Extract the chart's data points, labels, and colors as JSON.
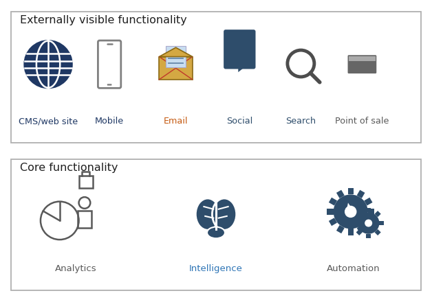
{
  "top_title": "Externally visible functionality",
  "bottom_title": "Core functionality",
  "top_labels": [
    "CMS/web site",
    "Mobile",
    "Email",
    "Social",
    "Search",
    "Point of sale"
  ],
  "top_label_colors": [
    "#1f3864",
    "#1f3864",
    "#c55a11",
    "#2e4d6b",
    "#2e4d6b",
    "#595959"
  ],
  "bottom_labels": [
    "Analytics",
    "Intelligence",
    "Automation"
  ],
  "bottom_label_colors": [
    "#595959",
    "#2e75b6",
    "#595959"
  ],
  "title_color": "#1f1f1f",
  "box_edge_color": "#b0b0b0",
  "bg_color": "#ffffff",
  "globe_color": "#1f3864",
  "phone_color": "#808080",
  "envelope_color": "#d4a843",
  "envelope_edge": "#8B6914",
  "paper_color": "#c8ddf0",
  "paper_lines_color": "#6688aa",
  "xline_color": "#c0392b",
  "social_color": "#2e4d6b",
  "search_color": "#4d4d4d",
  "card_color": "#666666",
  "card_stripe": "#aaaaaa",
  "analytics_color": "#595959",
  "brain_color": "#2e4d6b",
  "gear_color": "#2e4d6b"
}
